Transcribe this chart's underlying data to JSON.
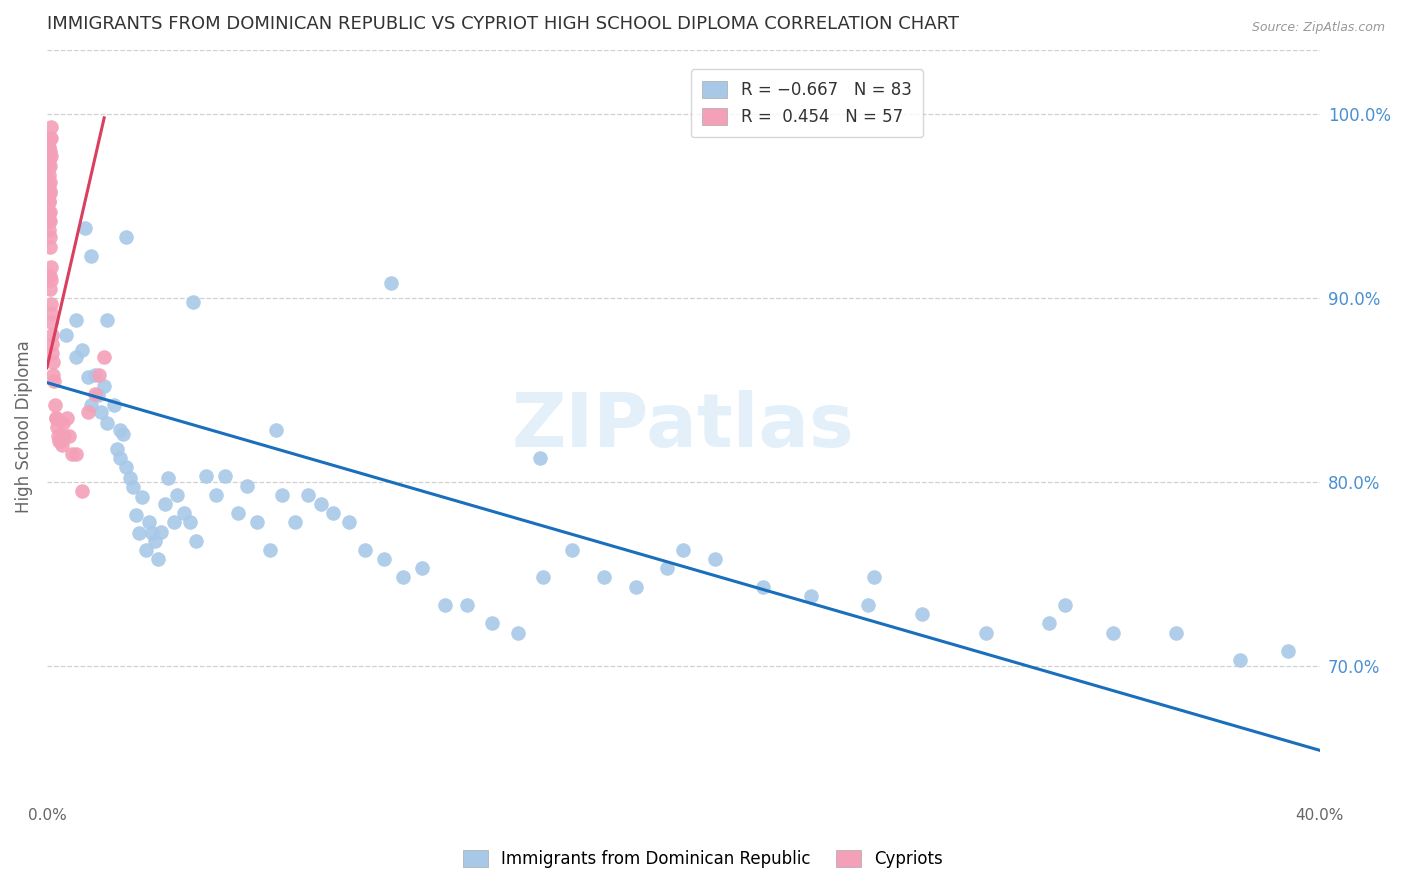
{
  "title": "IMMIGRANTS FROM DOMINICAN REPUBLIC VS CYPRIOT HIGH SCHOOL DIPLOMA CORRELATION CHART",
  "source": "Source: ZipAtlas.com",
  "ylabel": "High School Diploma",
  "right_yticks": [
    "100.0%",
    "90.0%",
    "80.0%",
    "70.0%"
  ],
  "right_ytick_vals": [
    1.0,
    0.9,
    0.8,
    0.7
  ],
  "xlim": [
    0.0,
    0.4
  ],
  "ylim": [
    0.625,
    1.035
  ],
  "blue_color": "#a8c8e8",
  "pink_color": "#f4a0b8",
  "blue_line_color": "#1a6fbd",
  "pink_line_color": "#d94060",
  "right_tick_color": "#4a90d0",
  "watermark": "ZIPatlas",
  "blue_scatter_x": [
    0.006,
    0.009,
    0.011,
    0.013,
    0.014,
    0.015,
    0.016,
    0.017,
    0.018,
    0.019,
    0.021,
    0.022,
    0.023,
    0.023,
    0.024,
    0.025,
    0.026,
    0.027,
    0.028,
    0.029,
    0.03,
    0.031,
    0.032,
    0.033,
    0.034,
    0.035,
    0.036,
    0.037,
    0.038,
    0.04,
    0.041,
    0.043,
    0.045,
    0.047,
    0.05,
    0.053,
    0.056,
    0.06,
    0.063,
    0.066,
    0.07,
    0.074,
    0.078,
    0.082,
    0.086,
    0.09,
    0.095,
    0.1,
    0.106,
    0.112,
    0.118,
    0.125,
    0.132,
    0.14,
    0.148,
    0.156,
    0.165,
    0.175,
    0.185,
    0.195,
    0.21,
    0.225,
    0.24,
    0.258,
    0.275,
    0.295,
    0.315,
    0.335,
    0.355,
    0.375,
    0.39,
    0.32,
    0.26,
    0.2,
    0.155,
    0.108,
    0.072,
    0.046,
    0.025,
    0.019,
    0.014,
    0.012,
    0.009
  ],
  "blue_scatter_y": [
    0.88,
    0.868,
    0.872,
    0.857,
    0.842,
    0.858,
    0.847,
    0.838,
    0.852,
    0.832,
    0.842,
    0.818,
    0.828,
    0.813,
    0.826,
    0.808,
    0.802,
    0.797,
    0.782,
    0.772,
    0.792,
    0.763,
    0.778,
    0.772,
    0.768,
    0.758,
    0.773,
    0.788,
    0.802,
    0.778,
    0.793,
    0.783,
    0.778,
    0.768,
    0.803,
    0.793,
    0.803,
    0.783,
    0.798,
    0.778,
    0.763,
    0.793,
    0.778,
    0.793,
    0.788,
    0.783,
    0.778,
    0.763,
    0.758,
    0.748,
    0.753,
    0.733,
    0.733,
    0.723,
    0.718,
    0.748,
    0.763,
    0.748,
    0.743,
    0.753,
    0.758,
    0.743,
    0.738,
    0.733,
    0.728,
    0.718,
    0.723,
    0.718,
    0.718,
    0.703,
    0.708,
    0.733,
    0.748,
    0.763,
    0.813,
    0.908,
    0.828,
    0.898,
    0.933,
    0.888,
    0.923,
    0.938,
    0.888
  ],
  "pink_scatter_x": [
    0.0005,
    0.0007,
    0.0008,
    0.001,
    0.0012,
    0.0005,
    0.0008,
    0.001,
    0.0012,
    0.0006,
    0.0008,
    0.001,
    0.0012,
    0.0007,
    0.0009,
    0.0011,
    0.0006,
    0.0008,
    0.001,
    0.0007,
    0.0009,
    0.0008,
    0.001,
    0.0009,
    0.0011,
    0.001,
    0.0012,
    0.0011,
    0.0013,
    0.0012,
    0.0013,
    0.0014,
    0.0015,
    0.0016,
    0.0017,
    0.0018,
    0.002,
    0.0022,
    0.0025,
    0.0028,
    0.003,
    0.0032,
    0.0034,
    0.0038,
    0.0042,
    0.0046,
    0.005,
    0.0055,
    0.0062,
    0.007,
    0.008,
    0.009,
    0.011,
    0.013,
    0.015,
    0.0165,
    0.018
  ],
  "pink_scatter_y": [
    0.972,
    0.977,
    0.982,
    0.987,
    0.993,
    0.97,
    0.975,
    0.98,
    0.987,
    0.962,
    0.967,
    0.972,
    0.977,
    0.953,
    0.958,
    0.963,
    0.947,
    0.952,
    0.957,
    0.942,
    0.947,
    0.937,
    0.942,
    0.928,
    0.933,
    0.912,
    0.917,
    0.905,
    0.91,
    0.897,
    0.892,
    0.887,
    0.88,
    0.875,
    0.87,
    0.865,
    0.858,
    0.855,
    0.842,
    0.835,
    0.835,
    0.83,
    0.825,
    0.822,
    0.822,
    0.82,
    0.832,
    0.825,
    0.835,
    0.825,
    0.815,
    0.815,
    0.795,
    0.838,
    0.848,
    0.858,
    0.868
  ],
  "blue_line_x": [
    0.0,
    0.4
  ],
  "blue_line_y": [
    0.854,
    0.654
  ],
  "pink_line_x": [
    0.0,
    0.018
  ],
  "pink_line_y": [
    0.862,
    0.998
  ],
  "background_color": "#ffffff",
  "grid_color": "#d0d0d0",
  "xtick_positions": [
    0.0,
    0.05,
    0.1,
    0.15,
    0.2,
    0.25,
    0.3,
    0.35,
    0.4
  ],
  "xtick_labels": [
    "0.0%",
    "",
    "",
    "",
    "",
    "",
    "",
    "",
    "40.0%"
  ]
}
